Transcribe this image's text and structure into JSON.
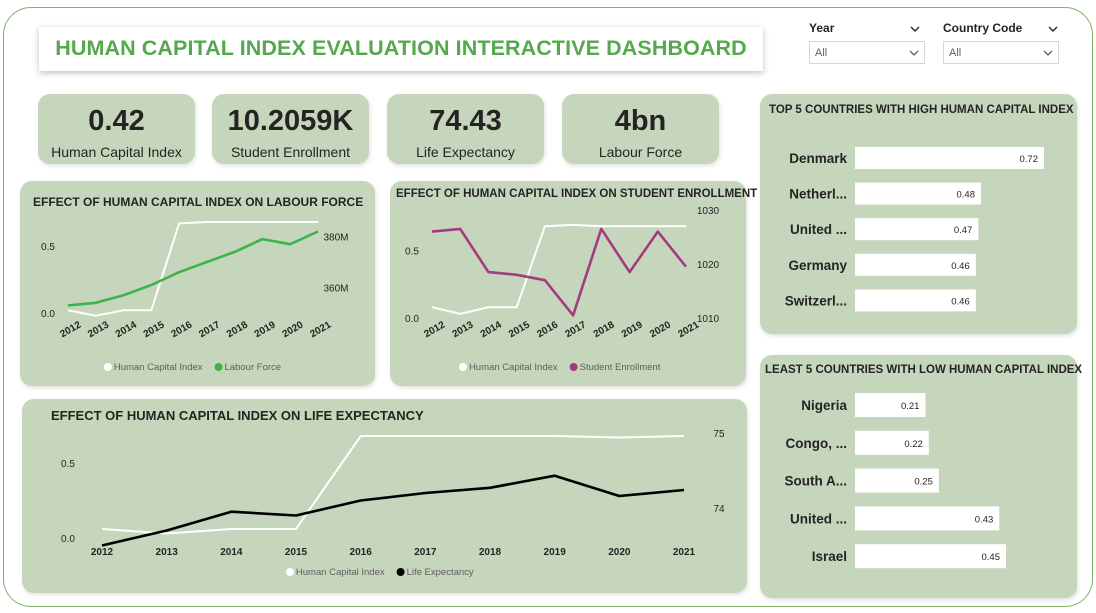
{
  "dashboard_title": "HUMAN CAPITAL INDEX EVALUATION INTERACTIVE DASHBOARD",
  "slicers": [
    {
      "label": "Year",
      "value": "All"
    },
    {
      "label": "Country Code",
      "value": "All"
    }
  ],
  "kpis": [
    {
      "value": "0.42",
      "label": "Human Capital Index"
    },
    {
      "value": "10.2059K",
      "label": "Student Enrollment"
    },
    {
      "value": "74.43",
      "label": "Life Expectancy"
    },
    {
      "value": "4bn",
      "label": "Labour Force"
    }
  ],
  "colors": {
    "brand_green": "#56a84e",
    "card_bg": "#c5d6bc",
    "hci_line": "#ffffff",
    "labour_line": "#3cb44b",
    "enrollment_line": "#a23c7f",
    "life_line": "#000000",
    "bar_fill": "#ffffff"
  },
  "chart_data": [
    {
      "type": "line",
      "title": "EFFECT OF HUMAN CAPITAL INDEX ON LABOUR FORCE",
      "x": [
        "2012",
        "2013",
        "2014",
        "2015",
        "2016",
        "2017",
        "2018",
        "2019",
        "2020",
        "2021"
      ],
      "y_left_ticks": [
        "0.0",
        "0.5"
      ],
      "y_right_ticks": [
        "360M",
        "380M"
      ],
      "y_left_range": [
        0,
        0.8
      ],
      "y_right_range": [
        350,
        392
      ],
      "series": [
        {
          "name": "Human Capital Index",
          "axis": "left",
          "color": "#ffffff",
          "values": [
            0.02,
            -0.02,
            0.02,
            0.02,
            0.67,
            0.68,
            0.68,
            0.68,
            0.68,
            0.68
          ]
        },
        {
          "name": "Labour Force",
          "axis": "right",
          "color": "#3cb44b",
          "values": [
            353,
            354,
            357,
            361,
            366,
            370,
            374,
            379,
            377,
            382
          ]
        }
      ],
      "legend": "bottom"
    },
    {
      "type": "line",
      "title": "EFFECT OF HUMAN CAPITAL INDEX ON STUDENT ENROLLMENT",
      "x": [
        "2012",
        "2013",
        "2014",
        "2015",
        "2016",
        "2017",
        "2018",
        "2019",
        "2020",
        "2021"
      ],
      "y_left_ticks": [
        "0.0",
        "0.5"
      ],
      "y_right_ticks": [
        "1010",
        "1020",
        "1030"
      ],
      "y_left_range": [
        0,
        0.8
      ],
      "y_right_range": [
        1010,
        1030
      ],
      "series": [
        {
          "name": "Human Capital Index",
          "axis": "left",
          "color": "#ffffff",
          "values": [
            0.08,
            0.03,
            0.08,
            0.08,
            0.68,
            0.69,
            0.68,
            0.68,
            0.68,
            0.68
          ]
        },
        {
          "name": "Student Enrollment",
          "axis": "right",
          "color": "#a23c7f",
          "values": [
            1026,
            1026.5,
            1018.5,
            1018,
            1017,
            1010.5,
            1026.5,
            1018.5,
            1026,
            1019.5
          ]
        }
      ],
      "legend": "bottom"
    },
    {
      "type": "line",
      "title": "EFFECT OF HUMAN CAPITAL INDEX ON LIFE EXPECTANCY",
      "x": [
        "2012",
        "2013",
        "2014",
        "2015",
        "2016",
        "2017",
        "2018",
        "2019",
        "2020",
        "2021"
      ],
      "y_left_ticks": [
        "0.0",
        "0.5"
      ],
      "y_right_ticks": [
        "74",
        "75"
      ],
      "y_left_range": [
        0,
        0.8
      ],
      "y_right_range": [
        73.6,
        75.2
      ],
      "series": [
        {
          "name": "Human Capital Index",
          "axis": "left",
          "color": "#ffffff",
          "values": [
            0.06,
            0.03,
            0.06,
            0.06,
            0.68,
            0.68,
            0.68,
            0.68,
            0.67,
            0.68
          ]
        },
        {
          "name": "Life Expectancy",
          "axis": "right",
          "color": "#000000",
          "values": [
            73.5,
            73.7,
            73.95,
            73.9,
            74.1,
            74.2,
            74.27,
            74.43,
            74.16,
            74.24
          ]
        }
      ],
      "legend": "bottom"
    },
    {
      "type": "bar",
      "orientation": "horizontal",
      "title": "TOP 5 COUNTRIES WITH HIGH HUMAN CAPITAL INDEX",
      "categories": [
        "Denmark",
        "Netherl...",
        "United ...",
        "Germany",
        "Switzerl..."
      ],
      "values": [
        0.72,
        0.48,
        0.47,
        0.46,
        0.46
      ],
      "value_labels": [
        "0.72",
        "0.48",
        "0.47",
        "0.46",
        "0.46"
      ],
      "xlim": [
        0,
        0.8
      ]
    },
    {
      "type": "bar",
      "orientation": "horizontal",
      "title": "LEAST 5 COUNTRIES WITH LOW HUMAN CAPITAL INDEX",
      "categories": [
        "Nigeria",
        "Congo, ...",
        "South A...",
        "United ...",
        "Israel"
      ],
      "values": [
        0.21,
        0.22,
        0.25,
        0.43,
        0.45
      ],
      "value_labels": [
        "0.21",
        "0.22",
        "0.25",
        "0.43",
        "0.45"
      ],
      "xlim": [
        0,
        0.45
      ]
    }
  ]
}
